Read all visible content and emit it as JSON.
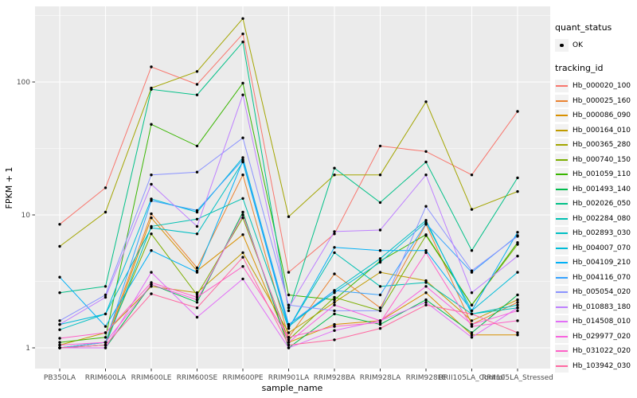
{
  "figure": {
    "background": "#FFFFFF",
    "panel_background": "#EBEBEB",
    "gridline_color": "#FFFFFF",
    "point_color": "#000000",
    "axis_text_color": "#4D4D4D",
    "axis_title_color": "#000000",
    "legend_key_fill": "#F2F2F2"
  },
  "legend": {
    "quant_status_title": "quant_status",
    "quant_status_items": [
      {
        "label": "OK",
        "marker": "black-point"
      }
    ],
    "tracking_id_title": "tracking_id"
  },
  "chart_data": {
    "type": "line",
    "title": "",
    "xlabel": "sample_name",
    "ylabel": "FPKM + 1",
    "y_scale": "log10",
    "y_ticks": [
      1,
      10,
      100
    ],
    "y_minor_ticks": [
      3.162,
      31.62,
      316.2
    ],
    "ylim": [
      0.7,
      370
    ],
    "grid": true,
    "legend_position": "right",
    "point_marker": "small black dot on every vertex",
    "categories": [
      "PB350LA",
      "RRIM600LA",
      "RRIM600LE",
      "RRIM600SE",
      "RRIM600PE",
      "RRIM901LA",
      "RRIM928BA",
      "RRIM928LA",
      "RRIM928LE",
      "RRII105LA_Control",
      "RRII105LA_Stressed"
    ],
    "series": [
      {
        "name": "Hb_000020_100",
        "color": "#F8766D",
        "values": [
          8.5,
          16,
          130,
          96,
          230,
          3.7,
          7.2,
          33,
          30,
          20,
          60
        ]
      },
      {
        "name": "Hb_000025_160",
        "color": "#EA8331",
        "values": [
          1.0,
          1.1,
          10.2,
          4.0,
          20,
          1.2,
          3.6,
          2.0,
          8.5,
          1.5,
          2.2
        ]
      },
      {
        "name": "Hb_000086_090",
        "color": "#D89000",
        "values": [
          1.0,
          1.05,
          9.5,
          3.8,
          7.1,
          1.1,
          1.5,
          1.6,
          2.6,
          1.25,
          1.25
        ]
      },
      {
        "name": "Hb_000164_010",
        "color": "#C09B00",
        "values": [
          1.05,
          1.3,
          2.9,
          2.6,
          5.2,
          1.3,
          2.2,
          3.7,
          3.2,
          1.6,
          2.3
        ]
      },
      {
        "name": "Hb_000365_280",
        "color": "#A3A500",
        "values": [
          5.8,
          10.5,
          90,
          120,
          300,
          9.7,
          20,
          20,
          71,
          11,
          15
        ]
      },
      {
        "name": "Hb_000740_150",
        "color": "#7CAE00",
        "values": [
          1.0,
          1.1,
          7.2,
          2.5,
          9.5,
          1.15,
          2.4,
          1.9,
          7.0,
          2.1,
          6.0
        ]
      },
      {
        "name": "Hb_001059_110",
        "color": "#39B600",
        "values": [
          1.1,
          1.2,
          48,
          33,
          98,
          2.5,
          2.3,
          4.5,
          7.1,
          2.1,
          6.2
        ]
      },
      {
        "name": "Hb_001493_140",
        "color": "#00BB4E",
        "values": [
          1.0,
          1.0,
          3.0,
          2.2,
          10.5,
          1.0,
          1.8,
          1.5,
          2.3,
          1.3,
          2.5
        ]
      },
      {
        "name": "Hb_002026_050",
        "color": "#00C087",
        "values": [
          2.6,
          2.9,
          88,
          80,
          200,
          1.9,
          22.5,
          12.4,
          25,
          5.4,
          19
        ]
      },
      {
        "name": "Hb_002284_080",
        "color": "#00C0B2",
        "values": [
          1.0,
          1.05,
          8.2,
          9.3,
          13.3,
          1.4,
          5.2,
          2.9,
          3.1,
          1.8,
          2.0
        ]
      },
      {
        "name": "Hb_002893_030",
        "color": "#00BFC4",
        "values": [
          1.37,
          1.8,
          8.0,
          7.2,
          25,
          1.45,
          2.7,
          4.7,
          9.1,
          1.8,
          2.1
        ]
      },
      {
        "name": "Hb_004007_070",
        "color": "#00BCD8",
        "values": [
          1.5,
          1.8,
          13.2,
          10.5,
          27,
          1.5,
          2.6,
          4.4,
          8.8,
          1.9,
          3.7
        ]
      },
      {
        "name": "Hb_004109_210",
        "color": "#00B0F6",
        "values": [
          3.4,
          1.45,
          5.4,
          3.7,
          25.5,
          1.4,
          5.7,
          5.4,
          5.4,
          1.9,
          7.4
        ]
      },
      {
        "name": "Hb_004116_070",
        "color": "#35A2FF",
        "values": [
          1.0,
          1.1,
          12.8,
          10.8,
          26,
          1.5,
          2.7,
          2.5,
          8.6,
          3.7,
          7.0
        ]
      },
      {
        "name": "Hb_005054_020",
        "color": "#8B93FF",
        "values": [
          1.6,
          2.5,
          20,
          21,
          38,
          2.1,
          1.9,
          1.9,
          11.6,
          3.8,
          6.9
        ]
      },
      {
        "name": "Hb_010883_180",
        "color": "#BE80FF",
        "values": [
          1.5,
          2.4,
          17,
          8.2,
          80,
          2.0,
          7.5,
          7.7,
          20,
          2.6,
          4.9
        ]
      },
      {
        "name": "Hb_014508_010",
        "color": "#E26EF7",
        "values": [
          1.0,
          1.0,
          3.7,
          1.7,
          3.3,
          1.0,
          1.35,
          1.6,
          2.2,
          1.2,
          2.0
        ]
      },
      {
        "name": "Hb_029977_020",
        "color": "#F863DF",
        "values": [
          1.05,
          1.1,
          3.0,
          2.3,
          10,
          1.1,
          2.1,
          1.6,
          2.9,
          1.5,
          1.9
        ]
      },
      {
        "name": "Hb_031022_020",
        "color": "#FF61C7",
        "values": [
          1.18,
          1.3,
          3.1,
          2.4,
          4.1,
          1.2,
          1.45,
          1.55,
          5.2,
          1.45,
          1.6
        ]
      },
      {
        "name": "Hb_103942_030",
        "color": "#FF68A1",
        "values": [
          1.0,
          1.05,
          2.55,
          2.0,
          4.8,
          1.05,
          1.15,
          1.4,
          2.1,
          1.8,
          1.3
        ]
      }
    ]
  }
}
